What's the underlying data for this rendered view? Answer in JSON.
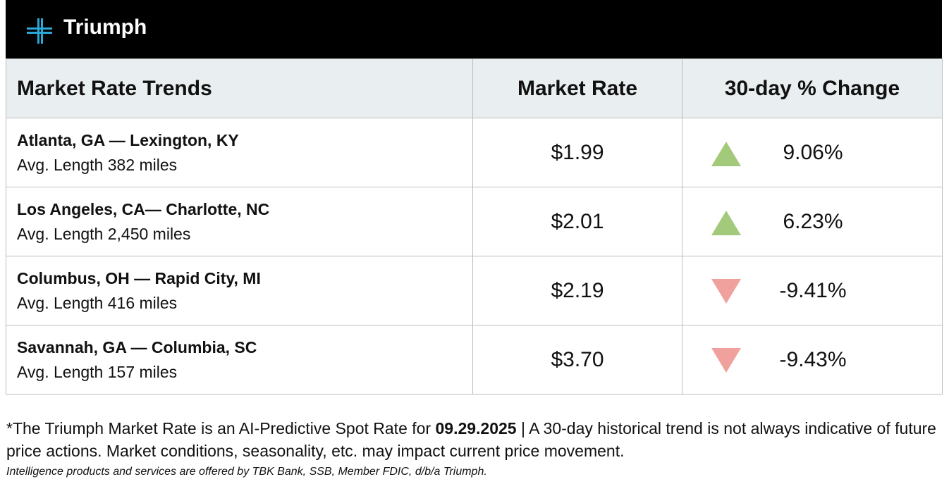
{
  "header": {
    "brand": "Triumph"
  },
  "table": {
    "columns": [
      "Market Rate Trends",
      "Market Rate",
      "30-day % Change"
    ],
    "rows": [
      {
        "route": "Atlanta, GA — Lexington, KY",
        "length": "Avg. Length 382 miles",
        "rate": "$1.99",
        "change": "9.06%",
        "direction": "up"
      },
      {
        "route": "Los Angeles, CA— Charlotte, NC",
        "length": "Avg. Length 2,450 miles",
        "rate": "$2.01",
        "change": "6.23%",
        "direction": "up"
      },
      {
        "route": "Columbus, OH — Rapid City, MI",
        "length": "Avg. Length 416 miles",
        "rate": "$2.19",
        "change": "-9.41%",
        "direction": "down"
      },
      {
        "route": "Savannah, GA —  Columbia, SC",
        "length": "Avg. Length 157 miles",
        "rate": "$3.70",
        "change": "-9.43%",
        "direction": "down"
      }
    ],
    "arrow_colors": {
      "up": "#a3c97a",
      "down": "#f0a19d"
    }
  },
  "footnote": {
    "text_before": "*The Triumph Market Rate is an AI-Predictive Spot Rate for ",
    "date": "09.29.2025",
    "text_after": " | A 30-day historical trend is not always indicative of future price actions. Market conditions, seasonality, etc. may impact current price movement.",
    "disclaimer": "Intelligence products and services are offered by TBK Bank, SSB, Member FDIC, d/b/a Triumph."
  }
}
